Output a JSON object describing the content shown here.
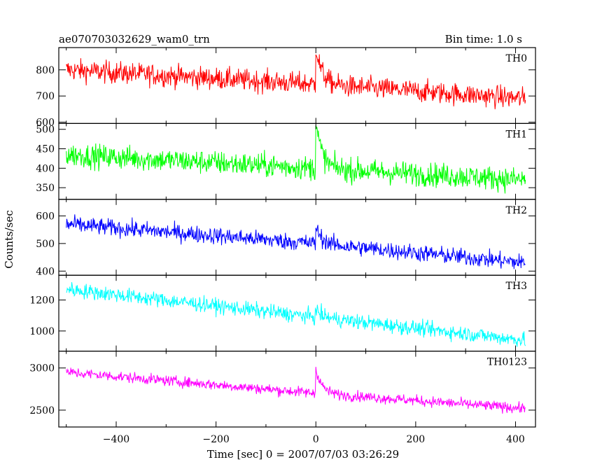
{
  "header": {
    "title": "ae070703032629_wam0_trn",
    "bin_time": "Bin time: 1.0 s"
  },
  "axes": {
    "ylabel": "Counts/sec",
    "xlabel": "Time [sec] 0 = 2007/07/03 03:26:29"
  },
  "chart_data": {
    "type": "line",
    "xlim": [
      -515,
      440
    ],
    "x_ticks": [
      -400,
      -200,
      0,
      200,
      400
    ],
    "x_tick_labels": [
      "−400",
      "−200",
      "0",
      "200",
      "400"
    ],
    "x_range_data": [
      -500,
      420
    ],
    "panels": [
      {
        "name": "TH0",
        "color": "#ff0000",
        "ylim": [
          595,
          885
        ],
        "y_ticks": [
          600,
          700,
          800
        ],
        "trend": [
          [
            -500,
            800
          ],
          [
            0,
            745
          ],
          [
            420,
            690
          ]
        ],
        "noise": 30,
        "burst_peak": 890
      },
      {
        "name": "TH1",
        "color": "#00ff00",
        "ylim": [
          320,
          515
        ],
        "y_ticks": [
          350,
          400,
          450,
          500
        ],
        "trend": [
          [
            -500,
            435
          ],
          [
            0,
            400
          ],
          [
            420,
            370
          ]
        ],
        "noise": 22,
        "burst_peak": 520
      },
      {
        "name": "TH2",
        "color": "#0000ff",
        "ylim": [
          385,
          660
        ],
        "y_ticks": [
          400,
          500,
          600
        ],
        "trend": [
          [
            -500,
            570
          ],
          [
            0,
            500
          ],
          [
            420,
            430
          ]
        ],
        "noise": 22,
        "burst_peak": 560
      },
      {
        "name": "TH3",
        "color": "#00ffff",
        "ylim": [
          870,
          1360
        ],
        "y_ticks": [
          1000,
          1200
        ],
        "trend": [
          [
            -500,
            1270
          ],
          [
            0,
            1090
          ],
          [
            420,
            940
          ]
        ],
        "noise": 35,
        "burst_peak": 1140
      },
      {
        "name": "TH0123",
        "color": "#ff00ff",
        "ylim": [
          2300,
          3200
        ],
        "y_ticks": [
          2500,
          3000
        ],
        "trend": [
          [
            -500,
            2950
          ],
          [
            0,
            2700
          ],
          [
            420,
            2520
          ]
        ],
        "noise": 45,
        "burst_peak": 3000
      }
    ]
  }
}
